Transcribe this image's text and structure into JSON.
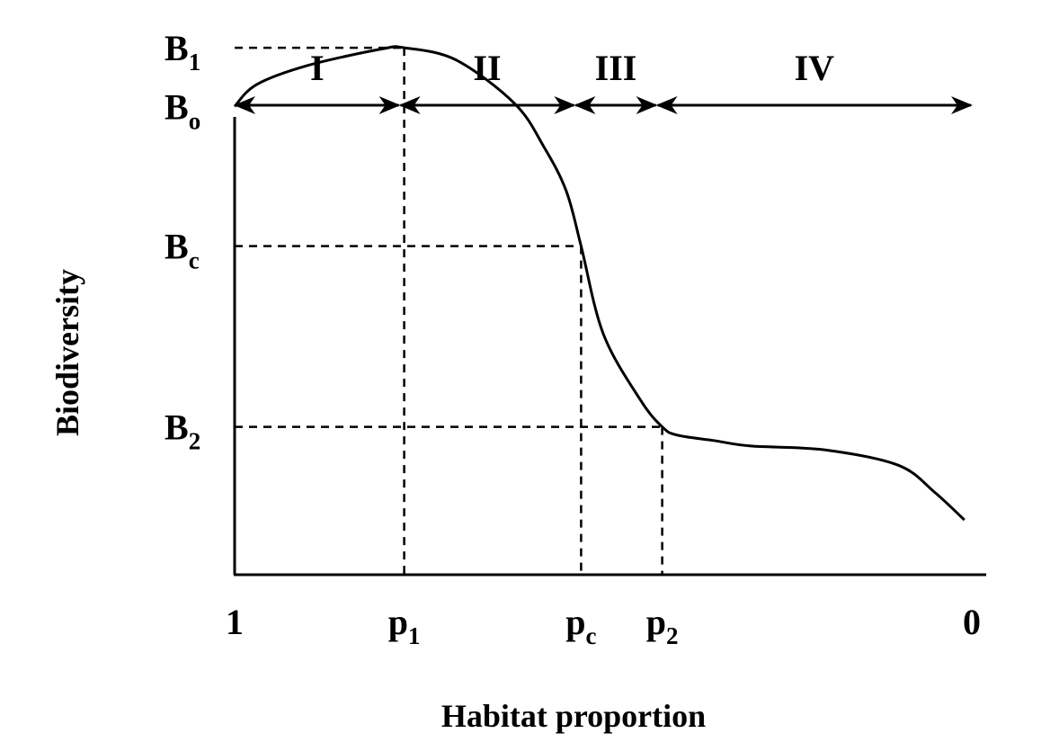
{
  "chart_data": {
    "type": "line",
    "title": "",
    "xlabel": "Habitat proportion",
    "ylabel": "Biodiversity",
    "x_reversed": true,
    "xlim": [
      1,
      0
    ],
    "grid": false,
    "x_ticks": [
      {
        "main": "1",
        "sub": ""
      },
      {
        "main": "p",
        "sub": "1"
      },
      {
        "main": "p",
        "sub": "c"
      },
      {
        "main": "p",
        "sub": "2"
      },
      {
        "main": "0",
        "sub": ""
      }
    ],
    "y_ticks": [
      {
        "main": "B",
        "sub": "1"
      },
      {
        "main": "B",
        "sub": "o"
      },
      {
        "main": "B",
        "sub": "c"
      },
      {
        "main": "B",
        "sub": "2"
      }
    ],
    "regions": [
      "I",
      "II",
      "III",
      "IV"
    ],
    "series": [
      {
        "x": [
          1.0,
          0.97,
          0.9,
          0.8,
          0.77,
          0.7,
          0.62,
          0.58,
          0.55,
          0.53,
          0.5,
          0.45,
          0.42,
          0.4,
          0.35,
          0.3,
          0.2,
          0.1,
          0.05,
          0.01
        ],
        "y": [
          0.855,
          0.895,
          0.93,
          0.96,
          0.962,
          0.94,
          0.86,
          0.78,
          0.7,
          0.6,
          0.44,
          0.32,
          0.27,
          0.255,
          0.245,
          0.235,
          0.228,
          0.2,
          0.15,
          0.1
        ]
      }
    ]
  }
}
